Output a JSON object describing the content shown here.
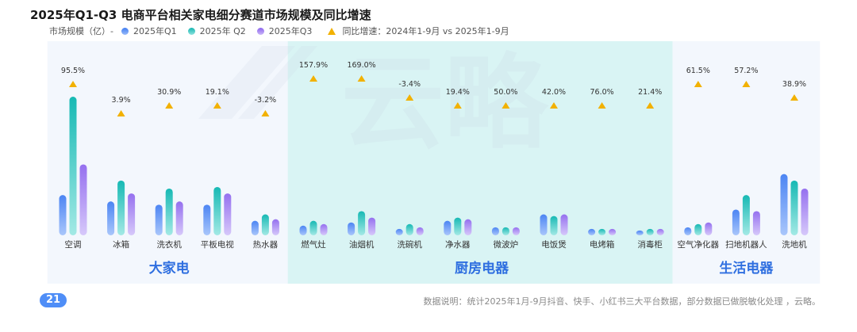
{
  "title": "2025年Q1-Q3 电商平台相关家电细分赛道市场规模及同比增速",
  "legend": {
    "axis_label": "市场规模（亿）-",
    "series": [
      "2025年Q1",
      "2025年 Q2",
      "2025年Q3"
    ],
    "growth_label": "同比增速：2024年1-9月 vs 2025年1-9月"
  },
  "watermark": "云略",
  "page_number": "21",
  "note": "数据说明：统计2025年1月-9月抖音、快手、小红书三大平台数据，部分数据已做脱敏化处理 ，云略。",
  "colors": {
    "q1": "#6f9cf5",
    "q2": "#2ec5c0",
    "q3": "#a98af0",
    "growth_marker": "#f2b100",
    "group_label": "#2f6fe0",
    "group_bg_light": "#f3f7fd",
    "group_bg_teal": "#d9f4f4"
  },
  "chart_data": {
    "type": "bar",
    "categories": [
      "空调",
      "冰箱",
      "洗衣机",
      "平板电视",
      "热水器",
      "燃气灶",
      "油烟机",
      "洗碗机",
      "净水器",
      "微波炉",
      "电饭煲",
      "电烤箱",
      "消毒柜",
      "空气净化器",
      "扫地机器人",
      "洗地机"
    ],
    "groups": [
      {
        "name": "大家电",
        "categories": [
          "空调",
          "冰箱",
          "洗衣机",
          "平板电视",
          "热水器"
        ]
      },
      {
        "name": "厨房电器",
        "categories": [
          "燃气灶",
          "油烟机",
          "洗碗机",
          "净水器",
          "微波炉",
          "电饭煲",
          "电烤箱",
          "消毒柜"
        ]
      },
      {
        "name": "生活电器",
        "categories": [
          "空气净化器",
          "扫地机器人",
          "洗地机"
        ]
      }
    ],
    "series": [
      {
        "name": "2025年Q1",
        "values": [
          25,
          21,
          19,
          19,
          9,
          6,
          8,
          4,
          9,
          5,
          13,
          4,
          3,
          5,
          16,
          38
        ]
      },
      {
        "name": "2025年 Q2",
        "values": [
          86,
          34,
          29,
          30,
          13,
          9,
          15,
          7,
          11,
          5,
          12,
          4,
          4,
          7,
          25,
          34
        ]
      },
      {
        "name": "2025年Q3",
        "values": [
          44,
          26,
          21,
          26,
          10,
          7,
          11,
          5,
          10,
          5,
          13,
          4,
          4,
          8,
          15,
          29
        ]
      }
    ],
    "growth": {
      "name": "同比增速：2024年1-9月 vs 2025年1-9月",
      "labels": [
        "95.5%",
        "3.9%",
        "30.9%",
        "19.1%",
        "-3.2%",
        "157.9%",
        "169.0%",
        "-3.4%",
        "19.4%",
        "50.0%",
        "42.0%",
        "76.0%",
        "21.4%",
        "61.5%",
        "57.2%",
        "38.9%"
      ],
      "values": [
        95.5,
        3.9,
        30.9,
        19.1,
        -3.2,
        157.9,
        169.0,
        -3.4,
        19.4,
        50.0,
        42.0,
        76.0,
        21.4,
        61.5,
        57.2,
        38.9
      ],
      "level_rank": [
        3,
        0,
        1,
        1,
        0,
        4,
        4,
        2,
        1,
        1,
        1,
        1,
        1,
        3,
        3,
        2
      ]
    },
    "grid": false,
    "legend_position": "top-left"
  }
}
